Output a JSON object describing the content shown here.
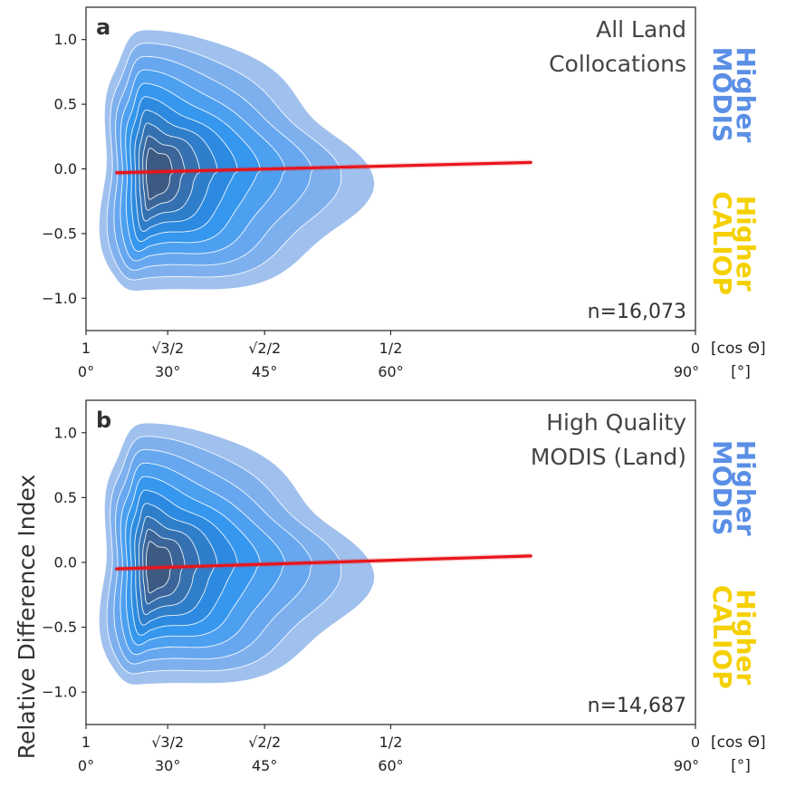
{
  "colors": {
    "modis": "#5b8fe6",
    "caliop": "#f5d000",
    "fit_line": "#e8151b",
    "kde_levels": [
      "#a0c1ee",
      "#7fb0ee",
      "#67a7ef",
      "#4da0ef",
      "#3597ee",
      "#2c8ae0",
      "#2f7ec9",
      "#3571b0",
      "#3b6598",
      "#3c5a82"
    ]
  },
  "chart_data": [
    {
      "type": "kde-contour",
      "panel_letter": "a",
      "title_lines": [
        "All Land",
        "Collocations"
      ],
      "count_text": "n=16,073",
      "ylim": [
        -1.25,
        1.25
      ],
      "yticks": [
        {
          "v": 1.0,
          "label": "1.0"
        },
        {
          "v": 0.5,
          "label": "0.5"
        },
        {
          "v": 0.0,
          "label": "0.0"
        },
        {
          "v": -0.5,
          "label": "−0.5"
        },
        {
          "v": -1.0,
          "label": "−1.0"
        }
      ],
      "xlim": [
        1.0,
        0.0
      ],
      "xticks": [
        {
          "v": 1.0,
          "cos_label": "1",
          "deg_label": "0°"
        },
        {
          "v": 0.866,
          "cos_label": "√3/2",
          "deg_label": "30°"
        },
        {
          "v": 0.707,
          "cos_label": "√2/2",
          "deg_label": "45°"
        },
        {
          "v": 0.5,
          "cos_label": "1/2",
          "deg_label": "60°"
        },
        {
          "v": 0.0,
          "cos_label": "0",
          "deg_label": "90°"
        }
      ],
      "x_unit_cos": "[cos Θ]",
      "x_unit_deg": "[°]",
      "side_labels": {
        "upper": [
          "Higher",
          "MODIS"
        ],
        "lower": [
          "Higher",
          "CALIOP"
        ]
      },
      "regression": {
        "x": [
          0.95,
          0.27
        ],
        "y": [
          -0.03,
          0.05
        ]
      },
      "kde": {
        "center": [
          0.89,
          -0.04
        ],
        "outer_x_extent": [
          0.975,
          0.56
        ],
        "outer_y_extent": [
          -1.0,
          1.0
        ],
        "levels": 10
      }
    },
    {
      "type": "kde-contour",
      "panel_letter": "b",
      "title_lines": [
        "High Quality",
        "MODIS (Land)"
      ],
      "count_text": "n=14,687",
      "ylabel": "Relative Difference Index",
      "ylim": [
        -1.25,
        1.25
      ],
      "yticks": [
        {
          "v": 1.0,
          "label": "1.0"
        },
        {
          "v": 0.5,
          "label": "0.5"
        },
        {
          "v": 0.0,
          "label": "0.0"
        },
        {
          "v": -0.5,
          "label": "−0.5"
        },
        {
          "v": -1.0,
          "label": "−1.0"
        }
      ],
      "xlim": [
        1.0,
        0.0
      ],
      "xticks": [
        {
          "v": 1.0,
          "cos_label": "1",
          "deg_label": "0°"
        },
        {
          "v": 0.866,
          "cos_label": "√3/2",
          "deg_label": "30°"
        },
        {
          "v": 0.707,
          "cos_label": "√2/2",
          "deg_label": "45°"
        },
        {
          "v": 0.5,
          "cos_label": "1/2",
          "deg_label": "60°"
        },
        {
          "v": 0.0,
          "cos_label": "0",
          "deg_label": "90°"
        }
      ],
      "x_unit_cos": "[cos Θ]",
      "x_unit_deg": "[°]",
      "side_labels": {
        "upper": [
          "Higher",
          "MODIS"
        ],
        "lower": [
          "Higher",
          "CALIOP"
        ]
      },
      "regression": {
        "x": [
          0.95,
          0.27
        ],
        "y": [
          -0.05,
          0.05
        ]
      },
      "kde": {
        "center": [
          0.89,
          -0.04
        ],
        "outer_x_extent": [
          0.975,
          0.56
        ],
        "outer_y_extent": [
          -1.0,
          1.0
        ],
        "levels": 10
      }
    }
  ]
}
